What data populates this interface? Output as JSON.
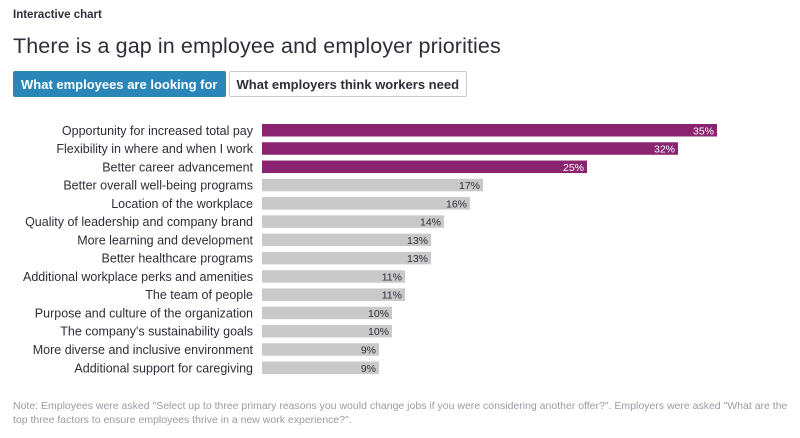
{
  "header": {
    "eyebrow": "Interactive chart",
    "title": "There is a gap in employee and employer priorities"
  },
  "tabs": [
    {
      "label": "What employees are looking for",
      "active": true
    },
    {
      "label": "What employers think workers need",
      "active": false
    }
  ],
  "colors": {
    "highlight": "#8a2470",
    "neutral": "#c9c9c9",
    "tab_active": "#2a86b8"
  },
  "chart_data": {
    "type": "bar",
    "orientation": "horizontal",
    "title": "",
    "xlabel": "",
    "ylabel": "",
    "xlim": [
      0,
      35
    ],
    "categories": [
      "Opportunity for increased total pay",
      "Flexibility in where and when I work",
      "Better career advancement",
      "Better overall well-being programs",
      "Location of the workplace",
      "Quality of leadership and company brand",
      "More learning and development",
      "Better healthcare programs",
      "Additional workplace perks and amenities",
      "The team of people",
      "Purpose and culture of the organization",
      "The company's sustainability goals",
      "More diverse and inclusive environment",
      "Additional support for caregiving"
    ],
    "values": [
      35,
      32,
      25,
      17,
      16,
      14,
      13,
      13,
      11,
      11,
      10,
      10,
      9,
      9
    ],
    "highlighted": [
      true,
      true,
      true,
      false,
      false,
      false,
      false,
      false,
      false,
      false,
      false,
      false,
      false,
      false
    ],
    "value_suffix": "%"
  },
  "note": "Note: Employees were asked \"Select up to three primary reasons you would change jobs if you were considering another offer?\". Employers were asked \"What are the top three factors to ensure employees thrive in a new work experience?\"."
}
